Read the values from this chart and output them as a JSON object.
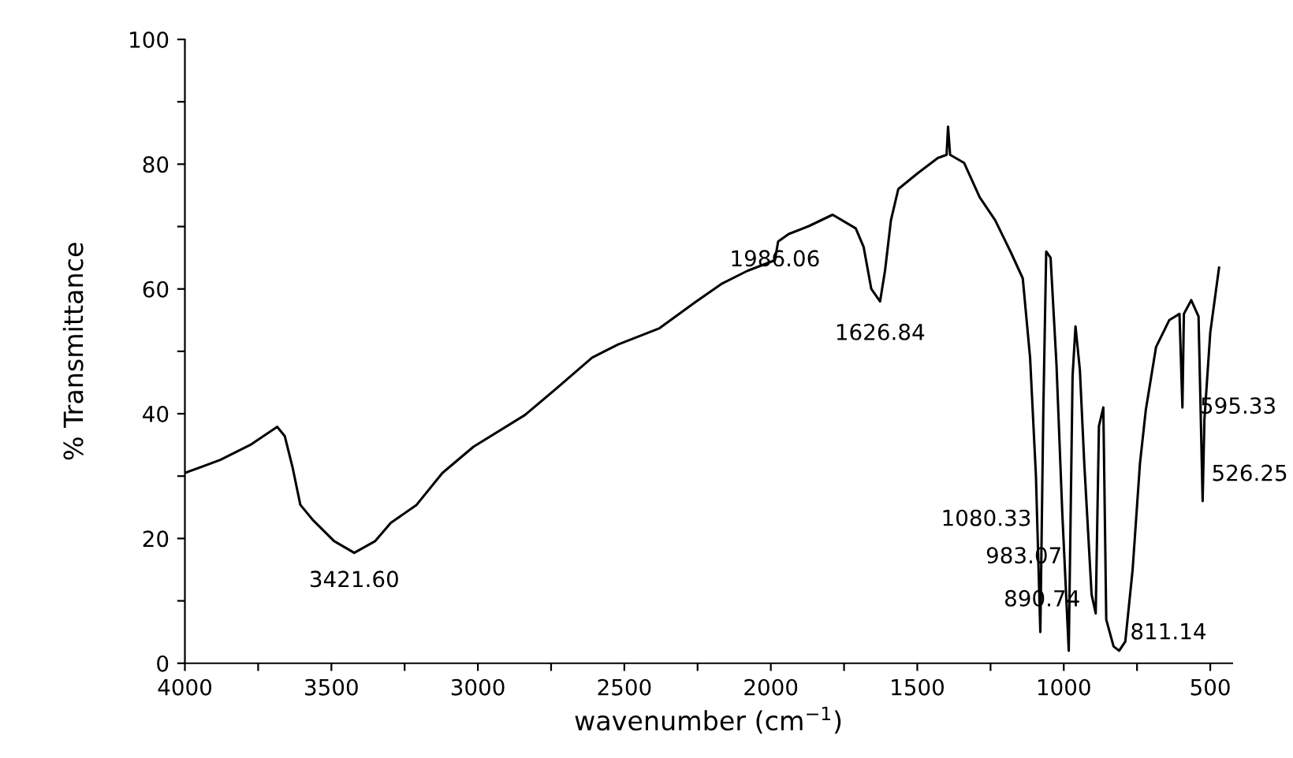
{
  "chart_data": {
    "type": "line",
    "xlabel": "wavenumber (cm$^{−1}$)",
    "ylabel": "% Transmittance",
    "x": [
      4000,
      3879,
      3773,
      3685,
      3659,
      3632,
      3606,
      3562,
      3491,
      3422,
      3350,
      3297,
      3209,
      3121,
      3015,
      2839,
      2733,
      2610,
      2521,
      2380,
      2257,
      2169,
      2080,
      1986,
      1975,
      1939,
      1869,
      1789,
      1710,
      1683,
      1657,
      1627,
      1610,
      1590,
      1565,
      1500,
      1430,
      1400,
      1395,
      1388,
      1340,
      1287,
      1234,
      1181,
      1140,
      1115,
      1095,
      1080,
      1070,
      1060,
      1045,
      1025,
      1005,
      983,
      970,
      960,
      945,
      930,
      905,
      891,
      880,
      865,
      855,
      830,
      811,
      790,
      765,
      740,
      720,
      685,
      640,
      605,
      595,
      590,
      565,
      540,
      526,
      520,
      500,
      470
    ],
    "series": [
      {
        "color": "#000000",
        "values": [
          30.5,
          32.6,
          35.1,
          37.9,
          36.4,
          31.3,
          25.4,
          22.9,
          19.6,
          17.7,
          19.6,
          22.5,
          25.4,
          30.5,
          34.7,
          39.8,
          44,
          49,
          51.1,
          53.7,
          57.9,
          60.8,
          62.9,
          64.6,
          67.6,
          68.8,
          70.1,
          71.9,
          69.7,
          66.7,
          60,
          58,
          63,
          71,
          76,
          78.5,
          81,
          81.5,
          86,
          81.5,
          80.2,
          74.7,
          71,
          65.9,
          61.7,
          49,
          30,
          5,
          40,
          66,
          65,
          48,
          24,
          2,
          46,
          54,
          47,
          32,
          11,
          8,
          38,
          41,
          7,
          2.7,
          2,
          3.5,
          15,
          32,
          40.6,
          50.7,
          55,
          56,
          41,
          56,
          58.2,
          55.6,
          26,
          39,
          53,
          63.4
        ]
      }
    ],
    "xlim": [
      4000,
      425
    ],
    "ylim": [
      0,
      100
    ],
    "xticks": [
      4000,
      {
        "value": 3750,
        "label": null
      },
      3500,
      {
        "value": 3250,
        "label": null
      },
      3000,
      {
        "value": 2750,
        "label": null
      },
      2500,
      {
        "value": 2250,
        "label": null
      },
      2000,
      {
        "value": 1750,
        "label": null
      },
      1500,
      {
        "value": 1250,
        "label": null
      },
      1000,
      {
        "value": 750,
        "label": null
      },
      500
    ],
    "yticks": [
      0,
      {
        "value": 10,
        "label": null
      },
      20,
      {
        "value": 30,
        "label": null
      },
      40,
      {
        "value": 50,
        "label": null
      },
      60,
      {
        "value": 70,
        "label": null
      },
      80,
      {
        "value": 90,
        "label": null
      },
      100
    ],
    "grid": false,
    "marker": "none",
    "line_style": "solid",
    "annotations": [
      {
        "text": "3421.60",
        "x": 3422,
        "y": 17.7
      },
      {
        "text": "1986.06",
        "x": 1986,
        "y": 64.6
      },
      {
        "text": "1626.84",
        "x": 1627,
        "y": 58
      },
      {
        "text": "1080.33",
        "x": 1080,
        "y": 23
      },
      {
        "text": "983.07",
        "x": 983,
        "y": 17
      },
      {
        "text": "890.74",
        "x": 891,
        "y": 8
      },
      {
        "text": "811.14",
        "x": 811,
        "y": 2
      },
      {
        "text": "595.33",
        "x": 595,
        "y": 41
      },
      {
        "text": "526.25",
        "x": 526,
        "y": 26
      }
    ]
  }
}
